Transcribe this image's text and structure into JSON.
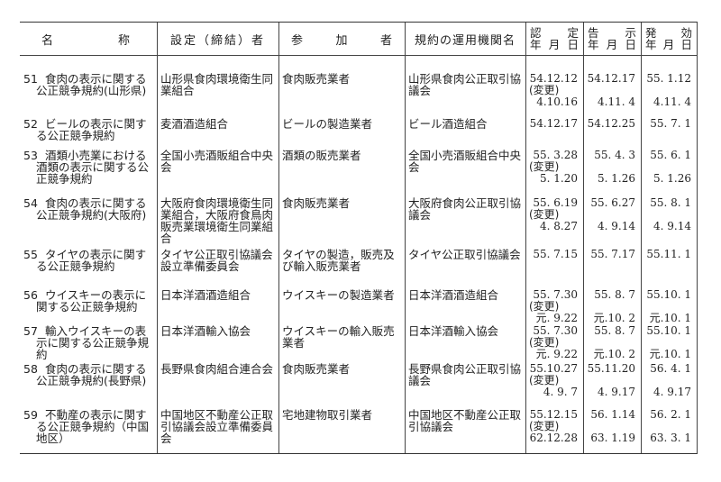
{
  "header": {
    "name": [
      "名",
      "称"
    ],
    "establisher": "設定（締結）者",
    "participants": [
      "参",
      "加",
      "者"
    ],
    "operator": "規約の運用機関名",
    "approved": {
      "top": [
        "認",
        "定"
      ],
      "bottom": [
        "年",
        "月",
        "日"
      ]
    },
    "notified": {
      "top": [
        "告",
        "示"
      ],
      "bottom": [
        "年",
        "月",
        "日"
      ]
    },
    "effective": {
      "top": [
        "発",
        "効"
      ],
      "bottom": [
        "年",
        "月",
        "日"
      ]
    }
  },
  "rows": [
    {
      "no": "51",
      "name": [
        "食肉の表示に関する",
        "公正競争規約(山形県)"
      ],
      "establisher": [
        "山形県食肉環境衛生同",
        "業組合"
      ],
      "participants": [
        "食肉販売業者"
      ],
      "operator": [
        "山形県食肉公正取引協",
        "議会"
      ],
      "approved": [
        "54.12.12",
        "(変更)",
        " 4.10.16"
      ],
      "notified": [
        "54.12.17",
        "",
        " 4.11. 4"
      ],
      "effective": [
        "55. 1.12",
        "",
        " 4.11. 4"
      ]
    },
    {
      "no": "52",
      "name": [
        "ビールの表示に関す",
        "る公正競争規約"
      ],
      "establisher": [
        "麦酒酒造組合"
      ],
      "participants": [
        " ビールの製造業者"
      ],
      "operator": [
        "ビール酒造組合"
      ],
      "approved": [
        "54.12.17"
      ],
      "notified": [
        "54.12.25"
      ],
      "effective": [
        "55. 7. 1"
      ]
    },
    {
      "no": "53",
      "name": [
        "酒類小売業における",
        "酒類の表示に関する公",
        "正競争規約"
      ],
      "establisher": [
        "全国小売酒販組合中央",
        "会"
      ],
      "participants": [
        " 酒類の販売業者"
      ],
      "operator": [
        "全国小売酒販組合中央",
        "会"
      ],
      "approved": [
        "55. 3.28",
        "(変更)",
        " 5. 1.20"
      ],
      "notified": [
        "55. 4. 3",
        "",
        " 5. 1.26"
      ],
      "effective": [
        "55. 6. 1",
        "",
        " 5. 1.26"
      ]
    },
    {
      "no": "54",
      "name": [
        "食肉の表示に関する",
        "公正競争規約(大阪府)"
      ],
      "establisher": [
        "大阪府食肉環境衛生同",
        "業組合，大阪府食鳥肉",
        "販売業環境衛生同業組",
        "合"
      ],
      "participants": [
        "食肉販売業者"
      ],
      "operator": [
        "大阪府食肉公正取引協",
        "議会"
      ],
      "approved": [
        "55. 6.19",
        "(変更)",
        "4. 8.27"
      ],
      "notified": [
        "55. 6.27",
        "",
        " 4. 9.14"
      ],
      "effective": [
        "55. 8. 1",
        "",
        " 4. 9.14"
      ]
    },
    {
      "no": "55",
      "name": [
        "タイヤの表示に関す",
        "る公正競争規約"
      ],
      "establisher": [
        "タイヤ公正取引協議会",
        "設立準備委員会"
      ],
      "participants": [
        "タイヤの製造，販売及",
        "び輸入販売業者"
      ],
      "operator": [
        "タイヤ公正取引協議会"
      ],
      "approved": [
        "55. 7.15"
      ],
      "notified": [
        "55. 7.17"
      ],
      "effective": [
        "55.11. 1"
      ]
    },
    {
      "no": "56",
      "name": [
        "ウイスキーの表示に",
        "関する公正競争規約"
      ],
      "establisher": [
        "日本洋酒酒造組合"
      ],
      "participants": [
        "ウイスキーの製造業者"
      ],
      "operator": [
        "日本洋酒酒造組合"
      ],
      "approved": [
        "55. 7.30",
        "(変更)",
        "元. 9.22"
      ],
      "notified": [
        "55. 8. 7",
        "",
        "元.10. 2"
      ],
      "effective": [
        "55.10. 1",
        "",
        "元.10. 1"
      ]
    },
    {
      "no": "57",
      "name": [
        "輸入ウイスキーの表",
        "示に関する公正競争規",
        "約"
      ],
      "establisher": [
        "日本洋酒輸入協会"
      ],
      "participants": [
        "ウイスキーの輸入販売",
        "業者"
      ],
      "operator": [
        "日本洋酒輸入協会"
      ],
      "approved": [
        "55. 7.30",
        "(変更)",
        "元. 9.22"
      ],
      "notified": [
        "55. 8. 7",
        "",
        "元.10. 2"
      ],
      "effective": [
        "55.10. 1",
        "",
        "元.10. 1"
      ]
    },
    {
      "no": "58",
      "name": [
        "食肉の表示に関する",
        "公正競争規約(長野県)"
      ],
      "establisher": [
        "長野県食肉組合連合会"
      ],
      "participants": [
        "食肉販売業者"
      ],
      "operator": [
        "長野県食肉公正取引協",
        "議会"
      ],
      "approved": [
        "55.10.27",
        "(変更)",
        "4. 9. 7"
      ],
      "notified": [
        "55.11.20",
        "",
        " 4. 9.17"
      ],
      "effective": [
        "56. 4. 1",
        "",
        " 4. 9.17"
      ]
    },
    {
      "no": "59",
      "name": [
        "不動産の表示に関す",
        "る公正競争規約（中国",
        "地区）"
      ],
      "establisher": [
        "中国地区不動産公正取",
        "引協議会設立準備委員",
        "会"
      ],
      "participants": [
        "宅地建物取引業者"
      ],
      "operator": [
        "中国地区不動産公正取",
        "引協議会"
      ],
      "approved": [
        "55.12.15",
        "(変更)",
        "62.12.28"
      ],
      "notified": [
        "56. 1.14",
        "",
        "63. 1.19"
      ],
      "effective": [
        "56. 2. 1",
        "",
        "63. 3. 1"
      ]
    }
  ]
}
